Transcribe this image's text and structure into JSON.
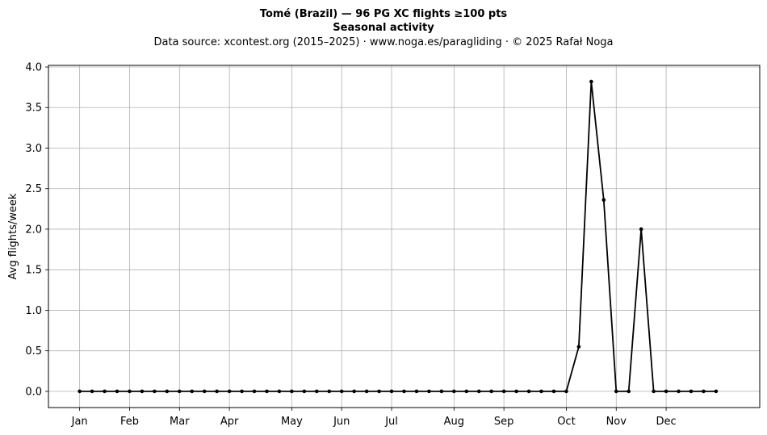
{
  "header": {
    "title_line1": "Tomé (Brazil)  —  96 PG XC flights ≥100 pts",
    "title_line2": "Seasonal activity",
    "source_line": "Data source: xcontest.org (2015–2025)  ·  www.noga.es/paragliding  ·  © 2025 Rafał Noga"
  },
  "colors": {
    "line": "#000000",
    "grid": "#b0b0b0",
    "background": "#ffffff"
  },
  "chart_data": {
    "type": "line",
    "title": "Tomé (Brazil)  —  96 PG XC flights ≥100 pts",
    "subtitle": "Seasonal activity",
    "xlabel": "",
    "ylabel": "Avg flights/week",
    "x_unit": "week of year",
    "xlim": [
      -1.5,
      55.5
    ],
    "ylim": [
      -0.2,
      4.02
    ],
    "grid": true,
    "x_ticks": [
      {
        "label": "Jan",
        "week": 1
      },
      {
        "label": "Feb",
        "week": 5
      },
      {
        "label": "Mar",
        "week": 9
      },
      {
        "label": "Apr",
        "week": 13
      },
      {
        "label": "May",
        "week": 18
      },
      {
        "label": "Jun",
        "week": 22
      },
      {
        "label": "Jul",
        "week": 26
      },
      {
        "label": "Aug",
        "week": 31
      },
      {
        "label": "Sep",
        "week": 35
      },
      {
        "label": "Oct",
        "week": 40
      },
      {
        "label": "Nov",
        "week": 44
      },
      {
        "label": "Dec",
        "week": 48
      }
    ],
    "y_ticks": [
      "0.0",
      "0.5",
      "1.0",
      "1.5",
      "2.0",
      "2.5",
      "3.0",
      "3.5",
      "4.0"
    ],
    "series": [
      {
        "marker": "dot",
        "x": [
          1,
          2,
          3,
          4,
          5,
          6,
          7,
          8,
          9,
          10,
          11,
          12,
          13,
          14,
          15,
          16,
          17,
          18,
          19,
          20,
          21,
          22,
          23,
          24,
          25,
          26,
          27,
          28,
          29,
          30,
          31,
          32,
          33,
          34,
          35,
          36,
          37,
          38,
          39,
          40,
          41,
          42,
          43,
          44,
          45,
          46,
          47,
          48,
          49,
          50,
          51,
          52
        ],
        "values": [
          0,
          0,
          0,
          0,
          0,
          0,
          0,
          0,
          0,
          0,
          0,
          0,
          0,
          0,
          0,
          0,
          0,
          0,
          0,
          0,
          0,
          0,
          0,
          0,
          0,
          0,
          0,
          0,
          0,
          0,
          0,
          0,
          0,
          0,
          0,
          0,
          0,
          0,
          0,
          0,
          0.55,
          3.82,
          2.36,
          0,
          0,
          2.0,
          0,
          0,
          0,
          0,
          0,
          0
        ]
      }
    ]
  }
}
